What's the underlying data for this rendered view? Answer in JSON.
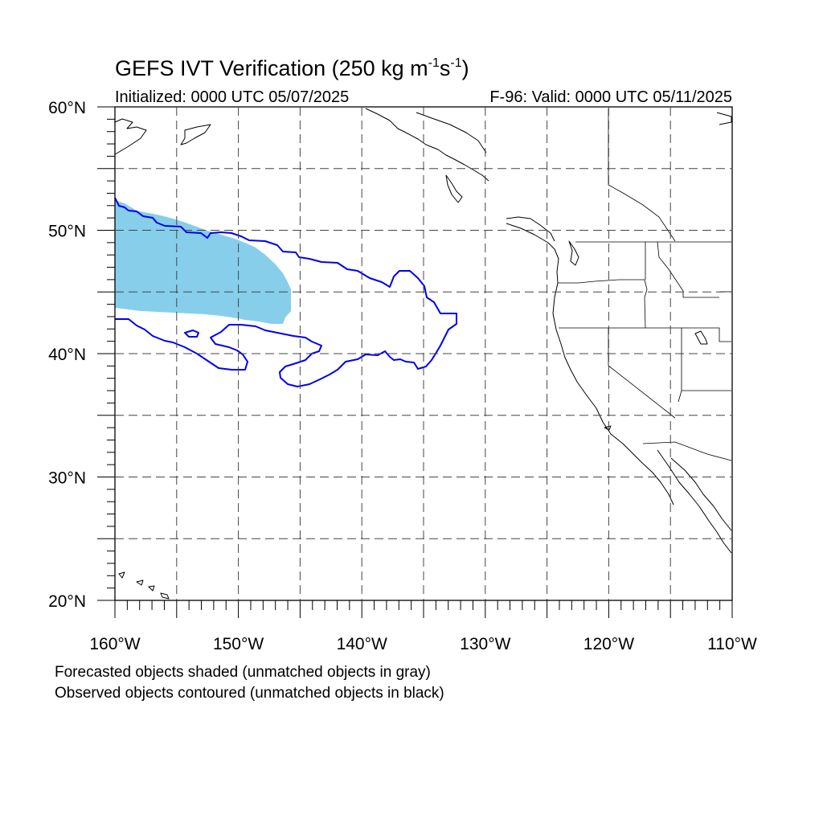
{
  "title": {
    "prefix": "GEFS IVT Verification (250 kg m",
    "sup1": "-1",
    "mid": "s",
    "sup2": "-1",
    "suffix": ")"
  },
  "initialized": "Initialized: 0000 UTC 05/07/2025",
  "valid": "F-96: Valid: 0000 UTC 05/11/2025",
  "notes": [
    "Forecasted objects shaded (unmatched objects in gray)",
    "Observed objects contoured (unmatched objects in black)"
  ],
  "map": {
    "lon_range": [
      -160,
      -110
    ],
    "lat_range": [
      20,
      60
    ],
    "lat_labels": [
      "20°N",
      "30°N",
      "40°N",
      "50°N",
      "60°N"
    ],
    "lon_labels": [
      "160°W",
      "150°W",
      "140°W",
      "130°W",
      "120°W",
      "110°W"
    ],
    "gridlines": "dashed every 5°",
    "colors": {
      "forecast_fill": "#87ceeb",
      "observed_contour": "#0000ee",
      "coastline": "#000000"
    },
    "forecast_object": {
      "lat_range_approx": [
        42.5,
        52.5
      ],
      "lon_range_approx": [
        -160,
        -146
      ]
    },
    "observed_object": {
      "lat_range_approx": [
        37.2,
        52.6
      ],
      "lon_range_approx": [
        -160,
        -132.3
      ]
    }
  }
}
